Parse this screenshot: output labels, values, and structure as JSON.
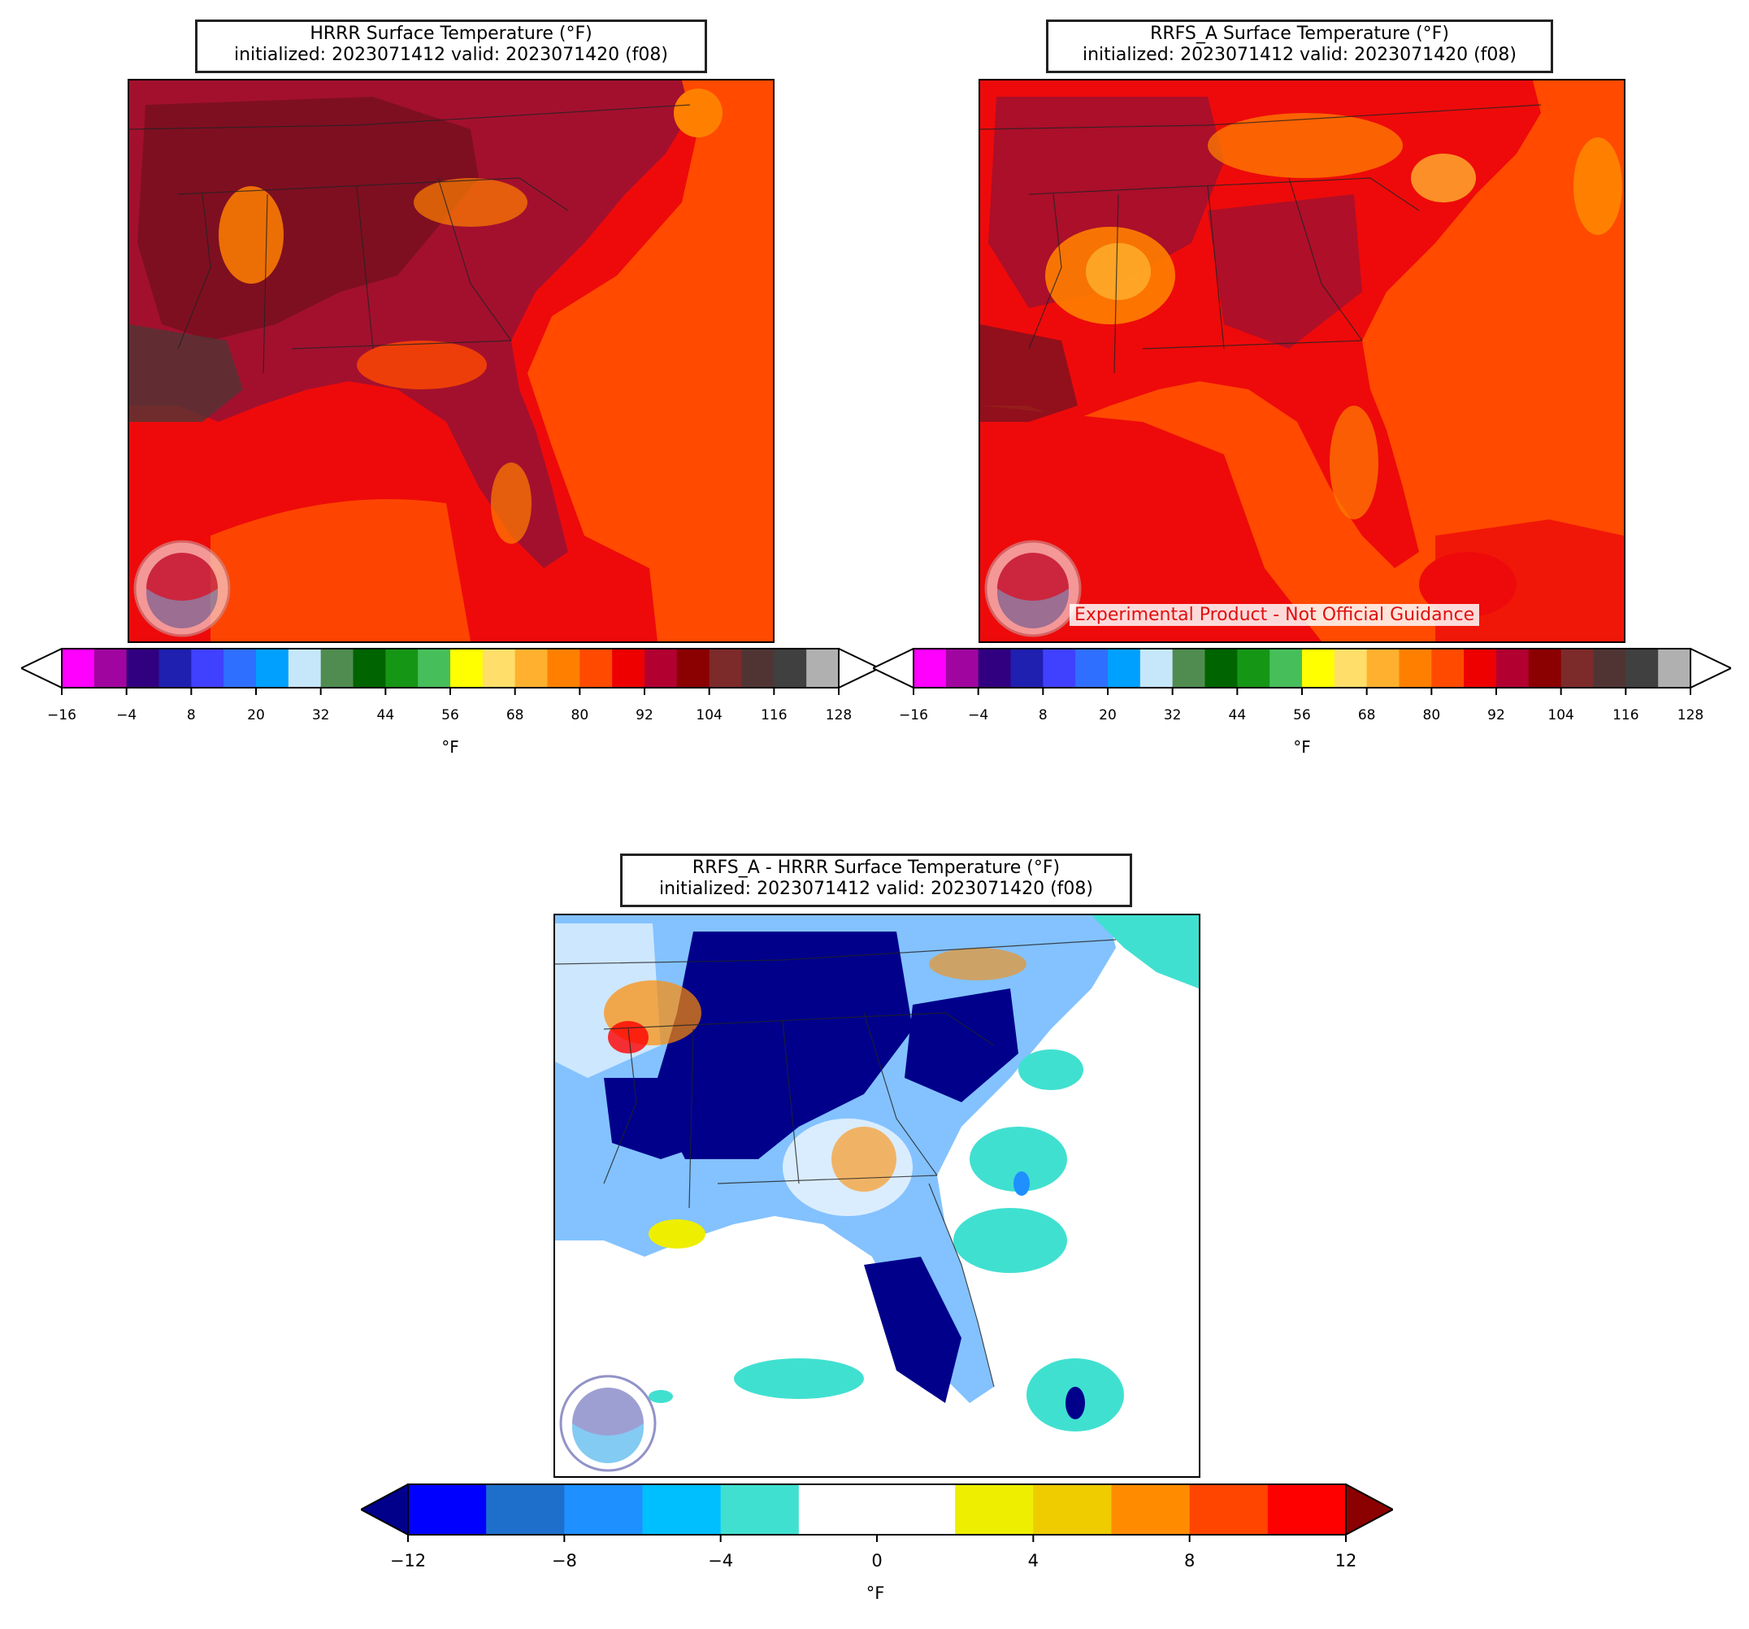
{
  "panels": {
    "hrrr": {
      "title_line1": "HRRR Surface Temperature (°F)",
      "title_line2": "initialized: 2023071412 valid: 2023071420 (f08)"
    },
    "rrfs": {
      "title_line1": "RRFS_A Surface Temperature (°F)",
      "title_line2": "initialized: 2023071412 valid: 2023071420 (f08)",
      "disclaimer": "Experimental Product - Not Official Guidance"
    },
    "diff": {
      "title_line1": "RRFS_A - HRRR Surface Temperature (°F)",
      "title_line2": "initialized: 2023071412 valid: 2023071420 (f08)"
    }
  },
  "colorbars": {
    "temperature": {
      "unit": "°F",
      "ticks": [
        "−16",
        "−4",
        "8",
        "20",
        "32",
        "44",
        "56",
        "68",
        "80",
        "92",
        "104",
        "116",
        "128"
      ],
      "under_color": "#ffffff",
      "over_color": "#ffffff",
      "colors": [
        "#ff00ff",
        "#a0069f",
        "#310080",
        "#1f1fb0",
        "#4040ff",
        "#2f6fff",
        "#00a0ff",
        "#c6e6fa",
        "#508c50",
        "#006400",
        "#159615",
        "#46be5a",
        "#ffff00",
        "#ffde6a",
        "#ffb02e",
        "#ff8000",
        "#ff4a00",
        "#ee0000",
        "#b20031",
        "#8b0000",
        "#7d2a2a",
        "#503434",
        "#404040",
        "#b0b0b0"
      ]
    },
    "difference": {
      "unit": "°F",
      "ticks": [
        "−12",
        "−8",
        "−4",
        "0",
        "4",
        "8",
        "12"
      ],
      "under_color": "#00008b",
      "over_color": "#8b0000",
      "colors": [
        "#0000ff",
        "#1e6fcc",
        "#1e90ff",
        "#00bfff",
        "#40e0d0",
        "#ffffff",
        "#ffffff",
        "#eeee00",
        "#eecc00",
        "#ff8c00",
        "#ff4500",
        "#ff0000"
      ]
    }
  },
  "logo": {
    "text": "NOAA"
  },
  "map_colors": {
    "hot_land": "#a3102e",
    "dark_land": "#7a1020",
    "ocean_warm": "#ee0a0a",
    "ocean_hot": "#ff4a00",
    "orange": "#ff8000",
    "light_orange": "#ffb02e",
    "diff_blue": "#00008b",
    "diff_mid_blue": "#1e6fcc",
    "diff_turq": "#40e0d0",
    "diff_yellow": "#eeee00",
    "diff_red": "#ff0000"
  }
}
